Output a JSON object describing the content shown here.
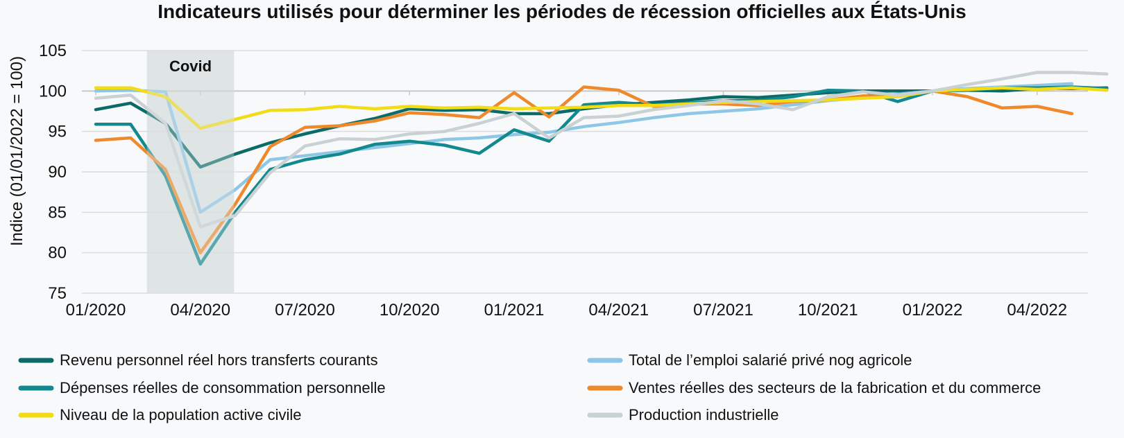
{
  "chart_data": {
    "type": "line",
    "title": "Indicateurs utilisés pour déterminer les périodes de récession officielles aux États-Unis",
    "ylabel": "Indice (01/01/2022 = 100)",
    "xlabel": "",
    "ylim": [
      75,
      105
    ],
    "yticks": [
      "75",
      "80",
      "85",
      "90",
      "95",
      "100",
      "105"
    ],
    "x": [
      "2020-01",
      "2020-02",
      "2020-03",
      "2020-04",
      "2020-05",
      "2020-06",
      "2020-07",
      "2020-08",
      "2020-09",
      "2020-10",
      "2020-11",
      "2020-12",
      "2021-01",
      "2021-02",
      "2021-03",
      "2021-04",
      "2021-05",
      "2021-06",
      "2021-07",
      "2021-08",
      "2021-09",
      "2021-10",
      "2021-11",
      "2021-12",
      "2022-01",
      "2022-02",
      "2022-03",
      "2022-04",
      "2022-05",
      "2022-06"
    ],
    "xticks": [
      "01/2020",
      "04/2020",
      "07/2020",
      "10/2020",
      "01/2021",
      "04/2021",
      "07/2021",
      "10/2021",
      "01/2022",
      "04/2022"
    ],
    "shaded_period": {
      "label": "Covid",
      "from": "2020-02-15",
      "to": "2020-04-30"
    },
    "grid": true,
    "legend_position": "bottom",
    "series": [
      {
        "name": "Revenu personnel réel hors transferts courants",
        "color": "#0b6b68",
        "values": [
          97.7,
          98.5,
          96.0,
          90.6,
          92.2,
          93.6,
          94.7,
          95.7,
          96.6,
          97.8,
          97.6,
          97.7,
          97.2,
          97.2,
          97.8,
          98.3,
          98.6,
          98.9,
          99.3,
          99.2,
          99.5,
          99.8,
          100.0,
          100.0,
          100.0,
          100.1,
          100.0,
          100.3,
          100.3,
          100.4
        ]
      },
      {
        "name": "Total de l’emploi salarié privé nog agricole",
        "color": "#8ec6e6",
        "values": [
          100.0,
          100.1,
          99.9,
          85.0,
          87.8,
          91.5,
          92.0,
          92.5,
          93.0,
          93.5,
          94.0,
          94.2,
          94.6,
          94.9,
          95.6,
          96.1,
          96.7,
          97.2,
          97.5,
          97.8,
          98.3,
          98.8,
          99.2,
          99.6,
          100.0,
          100.3,
          100.5,
          100.7,
          100.9,
          null
        ]
      },
      {
        "name": "Dépenses réelles de consommation personnelle",
        "color": "#12888f",
        "values": [
          95.9,
          95.9,
          89.5,
          78.6,
          85.0,
          90.3,
          91.5,
          92.2,
          93.4,
          93.8,
          93.3,
          92.3,
          95.2,
          93.8,
          98.3,
          98.6,
          98.3,
          98.5,
          98.8,
          98.8,
          99.3,
          100.1,
          100.0,
          98.7,
          100.0,
          100.1,
          100.4,
          100.4,
          100.5,
          100.3
        ]
      },
      {
        "name": "Ventes réelles des secteurs de la fabrication et du commerce",
        "color": "#ef8a2c",
        "values": [
          93.9,
          94.2,
          90.3,
          80.0,
          86.0,
          93.1,
          95.5,
          95.7,
          96.3,
          97.3,
          97.1,
          96.7,
          99.8,
          96.8,
          100.5,
          100.1,
          98.1,
          98.4,
          98.4,
          98.2,
          98.7,
          98.9,
          99.4,
          99.3,
          100.0,
          99.3,
          97.9,
          98.1,
          97.2,
          null
        ]
      },
      {
        "name": "Niveau de la population active civile",
        "color": "#f2dc16",
        "values": [
          100.4,
          100.4,
          99.3,
          95.4,
          96.5,
          97.6,
          97.7,
          98.1,
          97.8,
          98.1,
          97.9,
          98.0,
          97.8,
          97.9,
          98.0,
          98.2,
          98.2,
          98.4,
          98.6,
          98.7,
          98.8,
          98.9,
          99.1,
          99.3,
          100.0,
          100.2,
          100.4,
          100.2,
          100.4,
          100.1
        ]
      },
      {
        "name": "Production industrielle",
        "color": "#c9d1d3",
        "values": [
          99.1,
          99.5,
          96.0,
          83.2,
          84.6,
          89.9,
          93.2,
          94.1,
          94.0,
          94.7,
          95.0,
          96.0,
          97.2,
          94.2,
          96.7,
          96.9,
          97.7,
          98.2,
          98.8,
          98.4,
          97.7,
          99.3,
          99.9,
          99.5,
          100.0,
          100.8,
          101.5,
          102.3,
          102.3,
          102.1
        ]
      }
    ]
  }
}
